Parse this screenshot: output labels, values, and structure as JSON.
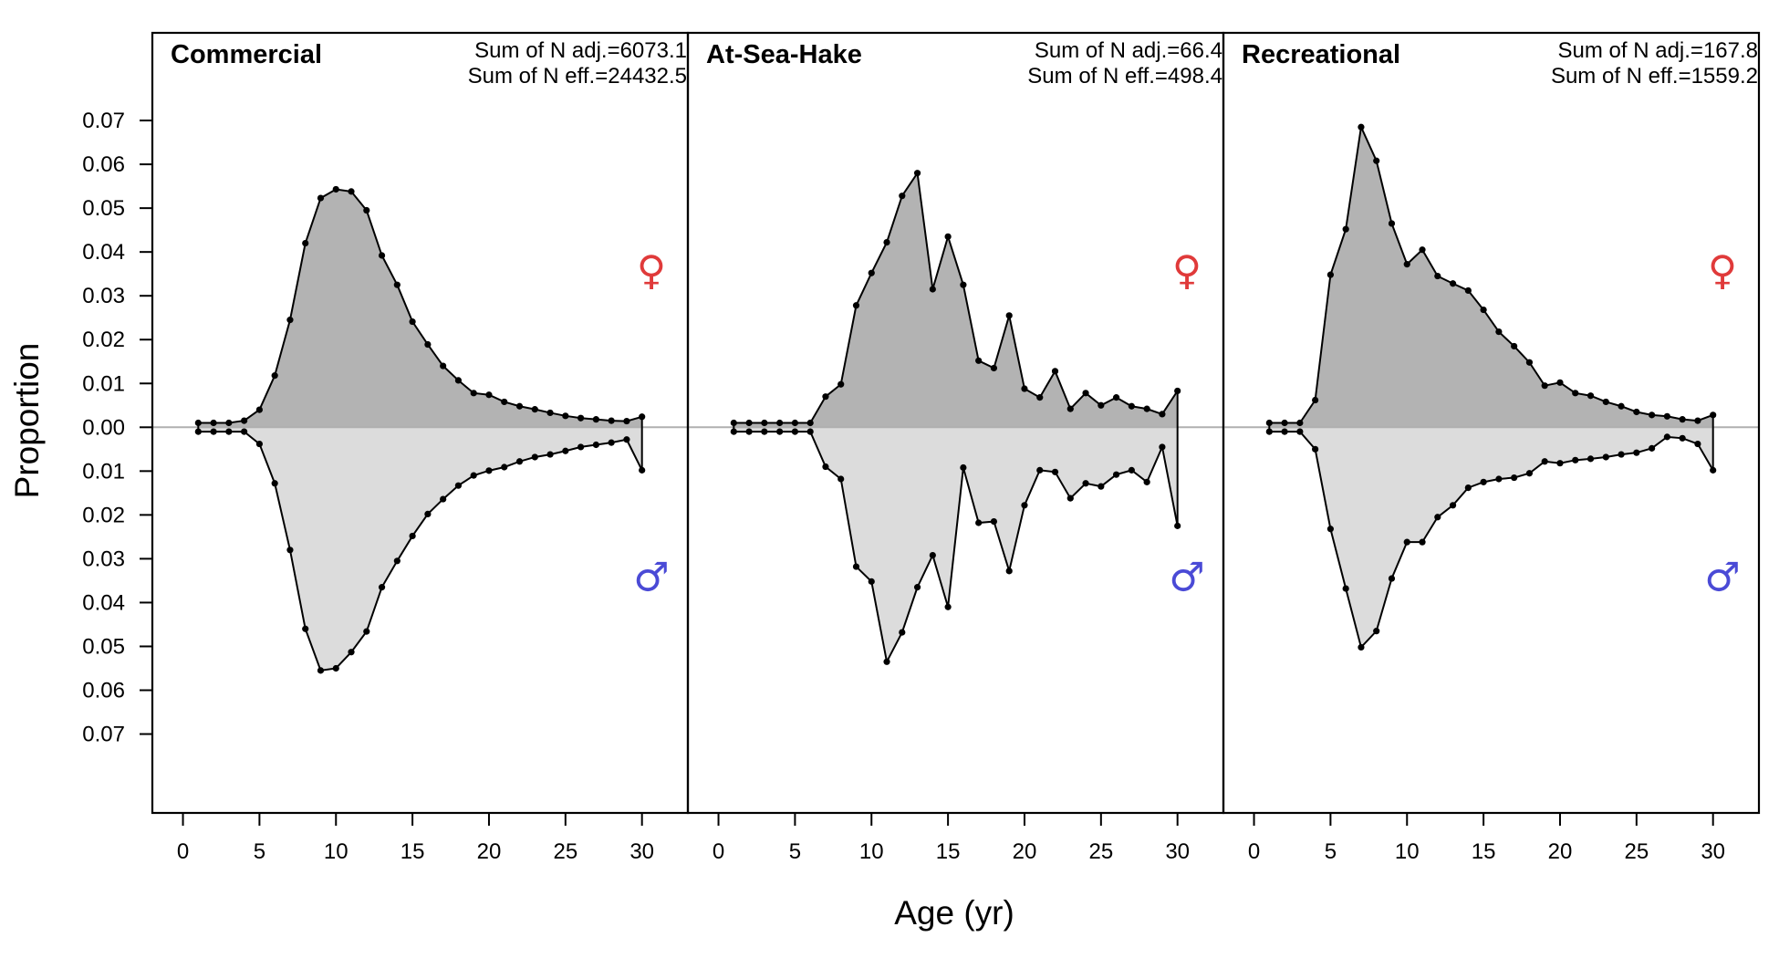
{
  "chart_data": {
    "type": "area",
    "xlabel": "Age (yr)",
    "ylabel": "Proportion",
    "xlim": [
      -2,
      33
    ],
    "ylim": [
      -0.088,
      0.09
    ],
    "x_ticks": [
      0,
      5,
      10,
      15,
      20,
      25,
      30
    ],
    "y_ticks": [
      0.07,
      0.06,
      0.05,
      0.04,
      0.03,
      0.02,
      0.01,
      0.0,
      -0.01,
      -0.02,
      -0.03,
      -0.04,
      -0.05,
      -0.06,
      -0.07
    ],
    "y_tick_labels": [
      "0.07",
      "0.06",
      "0.05",
      "0.04",
      "0.03",
      "0.02",
      "0.01",
      "0.00",
      "0.01",
      "0.02",
      "0.03",
      "0.04",
      "0.05",
      "0.06",
      "0.07"
    ],
    "x_tick_labels": [
      "0",
      "5",
      "10",
      "15",
      "20",
      "25",
      "30"
    ],
    "colors": {
      "female_fill": "#b3b3b3",
      "male_fill": "#dcdcdc",
      "female_symbol": "#e03a3a",
      "male_symbol": "#4a4ad6",
      "zero_line": "#b0b0b0"
    },
    "symbols": {
      "female": "♀",
      "male": "♂"
    },
    "ages": [
      1,
      2,
      3,
      4,
      5,
      6,
      7,
      8,
      9,
      10,
      11,
      12,
      13,
      14,
      15,
      16,
      17,
      18,
      19,
      20,
      21,
      22,
      23,
      24,
      25,
      26,
      27,
      28,
      29,
      30
    ],
    "panels": [
      {
        "title": "Commercial",
        "sum_n_adj": "Sum of N adj.=6073.1",
        "sum_n_eff": "Sum of N eff.=24432.5",
        "female": [
          0.001,
          0.001,
          0.001,
          0.0015,
          0.004,
          0.0118,
          0.0245,
          0.042,
          0.0523,
          0.0543,
          0.0538,
          0.0495,
          0.0392,
          0.0325,
          0.0241,
          0.0189,
          0.014,
          0.0107,
          0.0078,
          0.0074,
          0.0058,
          0.0048,
          0.0041,
          0.0033,
          0.0026,
          0.0021,
          0.0018,
          0.0015,
          0.0014,
          0.0024
        ],
        "male": [
          0.001,
          0.001,
          0.001,
          0.001,
          0.0038,
          0.0128,
          0.028,
          0.046,
          0.0555,
          0.055,
          0.0513,
          0.0466,
          0.0365,
          0.0305,
          0.0248,
          0.0198,
          0.0164,
          0.0133,
          0.011,
          0.0099,
          0.0091,
          0.0078,
          0.0068,
          0.0062,
          0.0054,
          0.0045,
          0.004,
          0.0035,
          0.0028,
          0.0098
        ]
      },
      {
        "title": "At-Sea-Hake",
        "sum_n_adj": "Sum of N adj.=66.4",
        "sum_n_eff": "Sum of N eff.=498.4",
        "female": [
          0.001,
          0.001,
          0.001,
          0.001,
          0.001,
          0.001,
          0.007,
          0.0098,
          0.0278,
          0.0352,
          0.0422,
          0.0528,
          0.058,
          0.0315,
          0.0435,
          0.0325,
          0.0152,
          0.0135,
          0.0255,
          0.0088,
          0.0068,
          0.0128,
          0.0042,
          0.0078,
          0.005,
          0.0068,
          0.0048,
          0.0042,
          0.003,
          0.0083
        ],
        "male": [
          0.001,
          0.001,
          0.001,
          0.001,
          0.001,
          0.001,
          0.009,
          0.0118,
          0.0318,
          0.0352,
          0.0535,
          0.0468,
          0.0365,
          0.0292,
          0.041,
          0.0092,
          0.0218,
          0.0215,
          0.0328,
          0.0178,
          0.0098,
          0.0102,
          0.0162,
          0.0128,
          0.0135,
          0.0108,
          0.0098,
          0.0125,
          0.0045,
          0.0225
        ]
      },
      {
        "title": "Recreational",
        "sum_n_adj": "Sum of N adj.=167.8",
        "sum_n_eff": "Sum of N eff.=1559.2",
        "female": [
          0.001,
          0.001,
          0.001,
          0.0062,
          0.0348,
          0.0452,
          0.0685,
          0.0608,
          0.0465,
          0.0372,
          0.0405,
          0.0345,
          0.0328,
          0.0312,
          0.0268,
          0.0218,
          0.0185,
          0.0148,
          0.0095,
          0.0102,
          0.0078,
          0.0072,
          0.0058,
          0.0048,
          0.0035,
          0.0028,
          0.0025,
          0.0018,
          0.0015,
          0.0028
        ],
        "male": [
          0.001,
          0.001,
          0.001,
          0.005,
          0.0232,
          0.0368,
          0.0502,
          0.0465,
          0.0345,
          0.0262,
          0.0262,
          0.0205,
          0.0178,
          0.0138,
          0.0125,
          0.0118,
          0.0115,
          0.0105,
          0.0078,
          0.0082,
          0.0075,
          0.0072,
          0.0068,
          0.0062,
          0.0058,
          0.0048,
          0.0022,
          0.0025,
          0.0038,
          0.0098
        ]
      }
    ]
  }
}
